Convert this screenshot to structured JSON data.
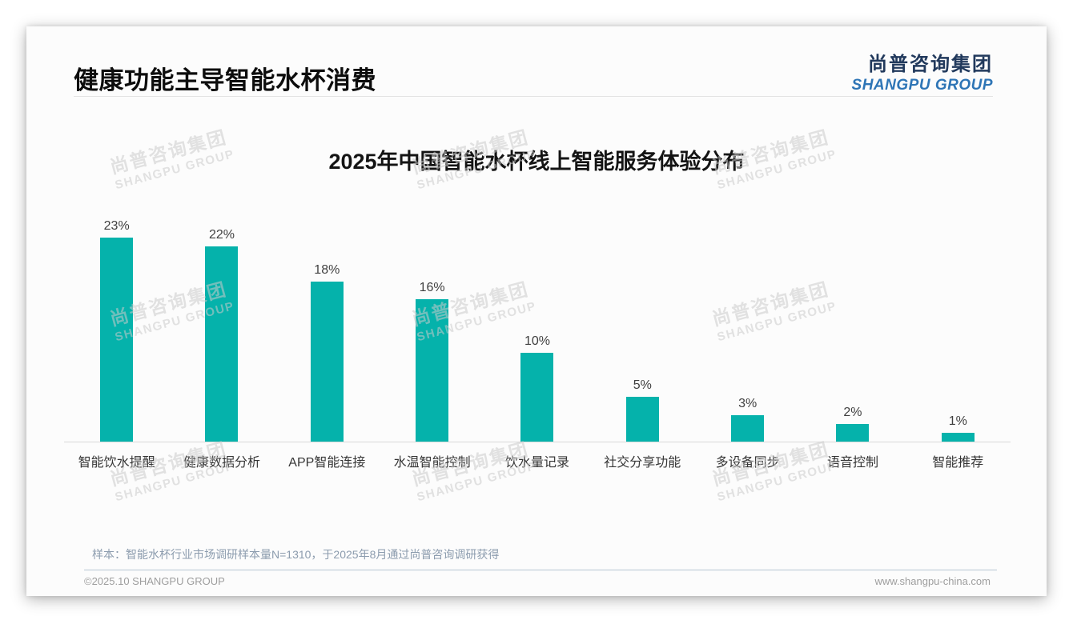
{
  "header": {
    "title": "健康功能主导智能水杯消费"
  },
  "logo": {
    "cn": "尚普咨询集团",
    "en": "SHANGPU GROUP"
  },
  "watermark": {
    "cn": "尚普咨询集团",
    "en": "SHANGPU GROUP"
  },
  "chart_data": {
    "type": "bar",
    "title": "2025年中国智能水杯线上智能服务体验分布",
    "categories": [
      "智能饮水提醒",
      "健康数据分析",
      "APP智能连接",
      "水温智能控制",
      "饮水量记录",
      "社交分享功能",
      "多设备同步",
      "语音控制",
      "智能推荐"
    ],
    "values": [
      23,
      22,
      18,
      16,
      10,
      5,
      3,
      2,
      1
    ],
    "unit": "%",
    "value_labels": [
      "23%",
      "22%",
      "18%",
      "16%",
      "10%",
      "5%",
      "3%",
      "2%",
      "1%"
    ],
    "bar_color": "#05b2ab",
    "ylim": [
      0,
      25
    ],
    "grid": false,
    "legend": "none",
    "xlabel": "",
    "ylabel": ""
  },
  "note": {
    "text": "样本：智能水杯行业市场调研样本量N=1310，于2025年8月通过尚普咨询调研获得"
  },
  "footer": {
    "left": "©2025.10 SHANGPU GROUP",
    "right": "www.shangpu-china.com"
  }
}
